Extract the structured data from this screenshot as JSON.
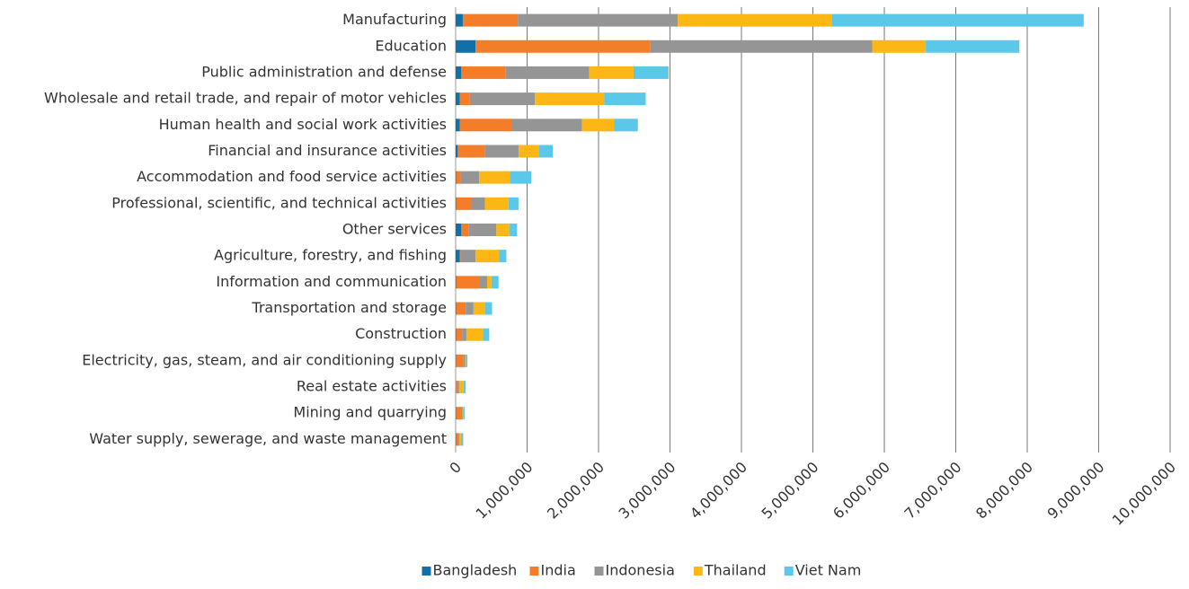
{
  "chart_data": {
    "type": "stacked_barh",
    "categories": [
      "Manufacturing",
      "Education",
      "Public administration and defense",
      "Wholesale and retail trade, and repair of motor vehicles",
      "Human health and social work activities",
      "Financial and insurance activities",
      "Accommodation and food service activities",
      "Professional, scientific, and technical activities",
      "Other services",
      "Agriculture, forestry, and fishing",
      "Information and communication",
      "Transportation and storage",
      "Construction",
      "Electricity, gas, steam, and air conditioning supply",
      "Real estate activities",
      "Mining and quarrying",
      "Water supply, sewerage, and waste management"
    ],
    "series": [
      {
        "name": "Bangladesh",
        "color": "#1170aa",
        "values": [
          100000,
          280000,
          80000,
          60000,
          60000,
          30000,
          10000,
          10000,
          80000,
          60000,
          10000,
          10000,
          10000,
          5000,
          0,
          5000,
          5000
        ]
      },
      {
        "name": "India",
        "color": "#f47d2a",
        "values": [
          770000,
          2440000,
          620000,
          140000,
          720000,
          380000,
          60000,
          210000,
          100000,
          10000,
          330000,
          130000,
          80000,
          100000,
          40000,
          70000,
          40000
        ]
      },
      {
        "name": "Indonesia",
        "color": "#959595",
        "values": [
          2240000,
          3110000,
          1170000,
          910000,
          990000,
          470000,
          260000,
          190000,
          390000,
          210000,
          100000,
          110000,
          60000,
          30000,
          10000,
          20000,
          10000
        ]
      },
      {
        "name": "Thailand",
        "color": "#fdb714",
        "values": [
          2160000,
          750000,
          620000,
          970000,
          450000,
          290000,
          430000,
          330000,
          180000,
          330000,
          60000,
          160000,
          230000,
          10000,
          60000,
          10000,
          20000
        ]
      },
      {
        "name": "Viet Nam",
        "color": "#5bc8ea",
        "values": [
          3520000,
          1310000,
          490000,
          580000,
          330000,
          190000,
          300000,
          140000,
          110000,
          100000,
          100000,
          100000,
          90000,
          20000,
          30000,
          20000,
          30000
        ]
      }
    ],
    "xlim": [
      0,
      10000000
    ],
    "xticks": [
      0,
      {
        "value": 1000000,
        "label": "1,000,000"
      },
      {
        "value": 2000000,
        "label": "2,000,000"
      },
      {
        "value": 3000000,
        "label": "3,000,000"
      },
      {
        "value": 4000000,
        "label": "4,000,000"
      },
      {
        "value": 5000000,
        "label": "5,000,000"
      },
      {
        "value": 6000000,
        "label": "6,000,000"
      },
      {
        "value": 7000000,
        "label": "7,000,000"
      },
      {
        "value": 8000000,
        "label": "8,000,000"
      },
      {
        "value": 9000000,
        "label": "9,000,000"
      },
      {
        "value": 10000000,
        "label": "10,000,000"
      }
    ],
    "grid": true,
    "legend": "bottom"
  }
}
